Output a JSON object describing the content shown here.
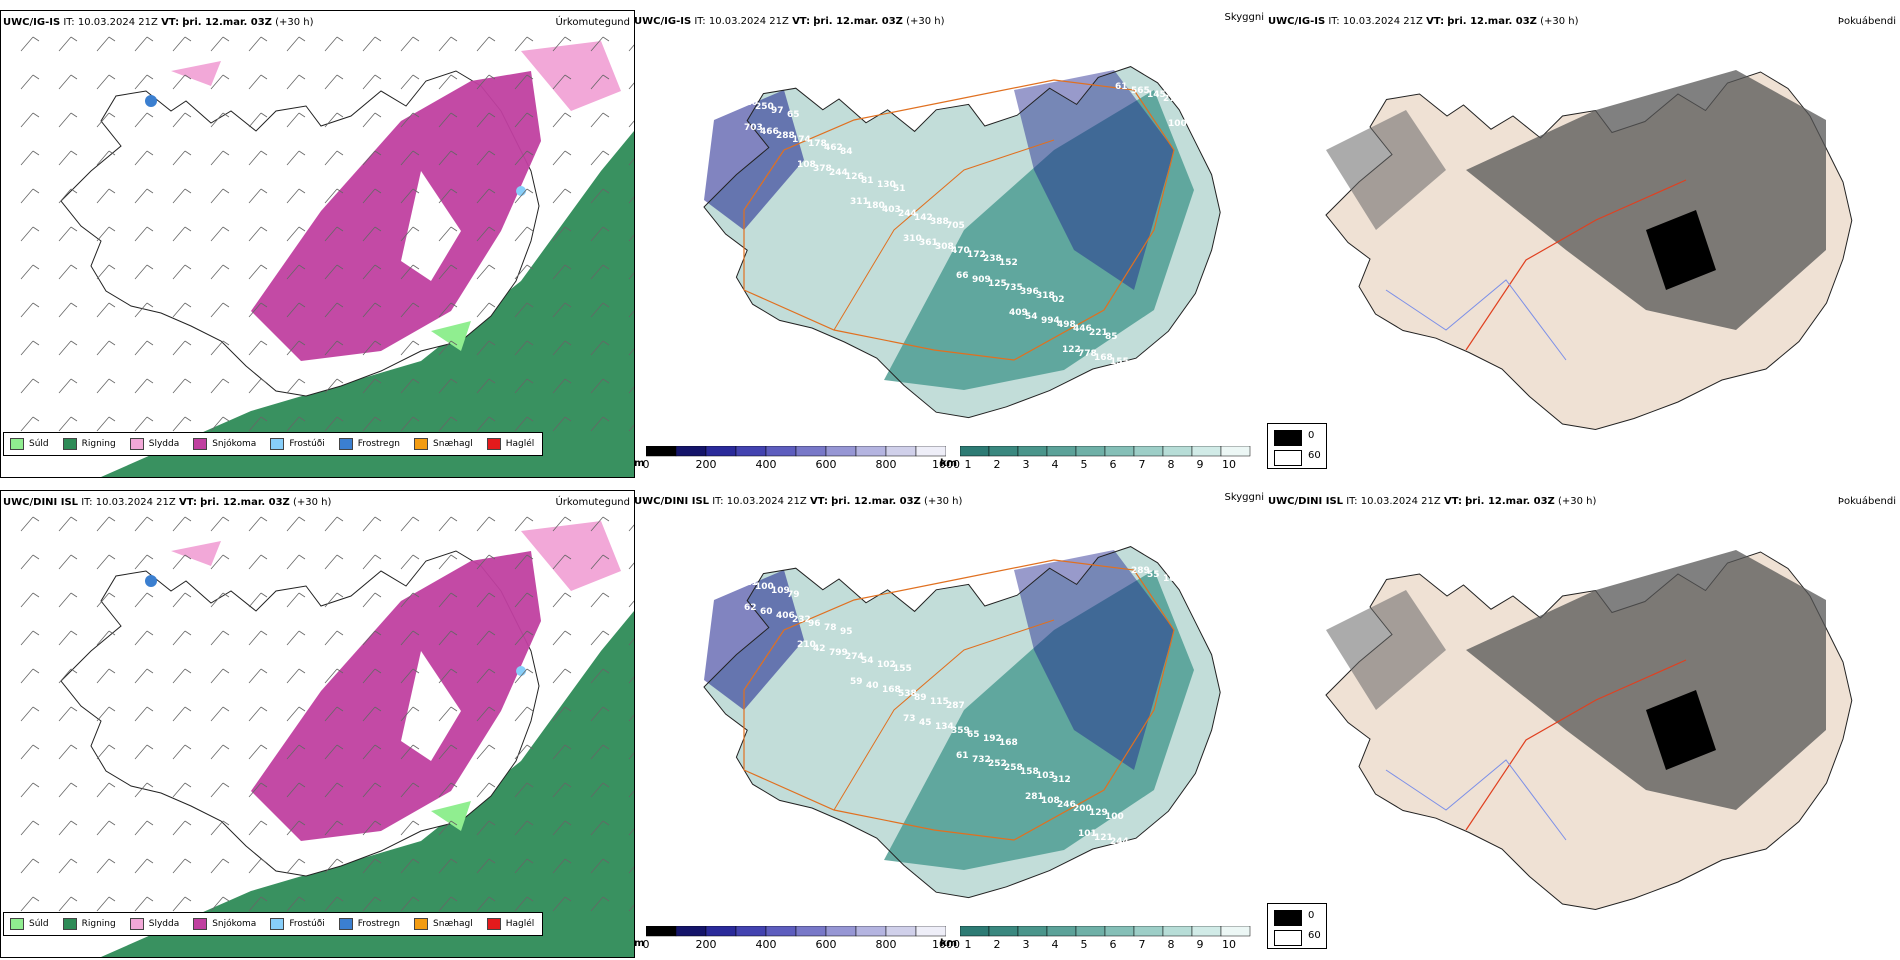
{
  "rows": [
    {
      "model": "UWC/IG-IS",
      "it_label": "IT:",
      "it_value": "10.03.2024 21Z",
      "vt_label": "VT:",
      "vt_value": "þri. 12.mar. 03Z",
      "lead": "(+30 h)",
      "precip_title": "Úrkomutegund",
      "vis_title": "Skyggni",
      "fog_title": "Þokuábendi",
      "vis_labels": [
        "60",
        "65",
        "84",
        "51",
        "705",
        "152",
        "02",
        "85",
        "84",
        "97",
        "462",
        "130",
        "388",
        "238",
        "318",
        "221",
        "383",
        "250",
        "178",
        "81",
        "142",
        "172",
        "396",
        "446",
        "361",
        "220",
        "174",
        "126",
        "244",
        "470",
        "735",
        "498",
        "155",
        "273",
        "288",
        "244",
        "403",
        "308",
        "125",
        "994",
        "168",
        "145",
        "466",
        "378",
        "180",
        "361",
        "909",
        "54",
        "778",
        "565",
        "703",
        "108",
        "311",
        "310",
        "66",
        "409",
        "122",
        "61",
        "100"
      ]
    },
    {
      "model": "UWC/DINI ISL",
      "it_label": "IT:",
      "it_value": "10.03.2024 21Z",
      "vt_label": "VT:",
      "vt_value": "þri. 12.mar. 03Z",
      "lead": "(+30 h)",
      "precip_title": "Úrkomutegund",
      "vis_title": "Skyggni",
      "fog_title": "Þokuábendi",
      "vis_labels": [
        "92",
        "79",
        "95",
        "155",
        "287",
        "168",
        "312",
        "100",
        "118",
        "109",
        "78",
        "102",
        "115",
        "192",
        "103",
        "129",
        "139",
        "100",
        "96",
        "54",
        "89",
        "65",
        "158",
        "200",
        "216",
        "221",
        "232",
        "274",
        "538",
        "359",
        "258",
        "246",
        "244",
        "166",
        "406",
        "799",
        "168",
        "134",
        "252",
        "108",
        "121",
        "55",
        "60",
        "42",
        "40",
        "45",
        "732",
        "281",
        "101",
        "289",
        "62",
        "210",
        "59",
        "73",
        "61"
      ]
    }
  ],
  "precip_legend": [
    {
      "label": "Súld",
      "color": "#90ee90"
    },
    {
      "label": "Rigning",
      "color": "#2e8b57"
    },
    {
      "label": "Slydda",
      "color": "#f2a8d8"
    },
    {
      "label": "Snjókoma",
      "color": "#c040a0"
    },
    {
      "label": "Frostúði",
      "color": "#87cefa"
    },
    {
      "label": "Frostregn",
      "color": "#3b7fd0"
    },
    {
      "label": "Snæhagl",
      "color": "#f39c12"
    },
    {
      "label": "Haglél",
      "color": "#e41a1c"
    }
  ],
  "vis_colorbar_m": {
    "unit": "m",
    "ticks": [
      "0",
      "200",
      "400",
      "600",
      "800",
      "1000"
    ]
  },
  "vis_colorbar_km": {
    "unit": "km",
    "ticks": [
      "1",
      "2",
      "3",
      "4",
      "5",
      "6",
      "7",
      "8",
      "9",
      "10"
    ]
  },
  "fog_legend": {
    "black_label": "0",
    "white_label": "60"
  },
  "colors": {
    "snow": "#c040a0",
    "rain": "#2e8b57",
    "drizzle": "#90ee90",
    "sleet": "#f2a8d8",
    "freezing_drizzle": "#87cefa",
    "freezing_rain": "#3b7fd0",
    "vis_teal": "#4f9e93",
    "vis_navy": "#1a1f8c",
    "road": "#e07020",
    "land_beige": "#efe1d4"
  }
}
